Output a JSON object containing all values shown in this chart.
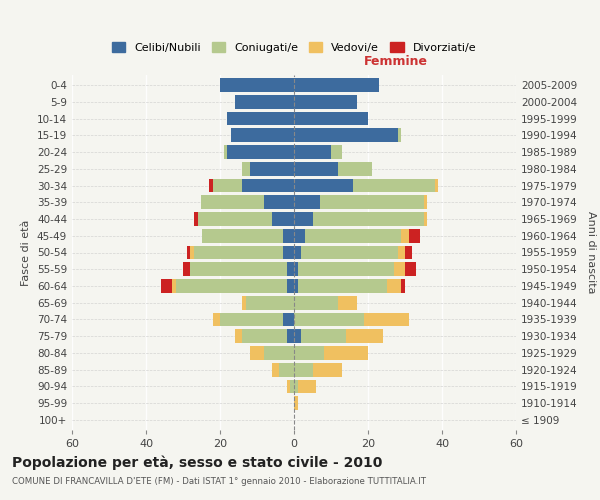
{
  "age_groups": [
    "100+",
    "95-99",
    "90-94",
    "85-89",
    "80-84",
    "75-79",
    "70-74",
    "65-69",
    "60-64",
    "55-59",
    "50-54",
    "45-49",
    "40-44",
    "35-39",
    "30-34",
    "25-29",
    "20-24",
    "15-19",
    "10-14",
    "5-9",
    "0-4"
  ],
  "birth_years": [
    "≤ 1909",
    "1910-1914",
    "1915-1919",
    "1920-1924",
    "1925-1929",
    "1930-1934",
    "1935-1939",
    "1940-1944",
    "1945-1949",
    "1950-1954",
    "1955-1959",
    "1960-1964",
    "1965-1969",
    "1970-1974",
    "1975-1979",
    "1980-1984",
    "1985-1989",
    "1990-1994",
    "1995-1999",
    "2000-2004",
    "2005-2009"
  ],
  "males": {
    "celibi": [
      0,
      0,
      0,
      0,
      0,
      2,
      3,
      0,
      2,
      2,
      3,
      3,
      6,
      8,
      14,
      12,
      18,
      17,
      18,
      16,
      20
    ],
    "coniugati": [
      0,
      0,
      1,
      4,
      8,
      12,
      17,
      13,
      30,
      26,
      24,
      22,
      20,
      17,
      8,
      2,
      1,
      0,
      0,
      0,
      0
    ],
    "vedovi": [
      0,
      0,
      1,
      2,
      4,
      2,
      2,
      1,
      1,
      0,
      1,
      0,
      0,
      0,
      0,
      0,
      0,
      0,
      0,
      0,
      0
    ],
    "divorziati": [
      0,
      0,
      0,
      0,
      0,
      0,
      0,
      0,
      3,
      2,
      1,
      0,
      1,
      0,
      1,
      0,
      0,
      0,
      0,
      0,
      0
    ]
  },
  "females": {
    "nubili": [
      0,
      0,
      0,
      0,
      0,
      2,
      0,
      0,
      1,
      1,
      2,
      3,
      5,
      7,
      16,
      12,
      10,
      28,
      20,
      17,
      23
    ],
    "coniugate": [
      0,
      0,
      1,
      5,
      8,
      12,
      19,
      12,
      24,
      26,
      26,
      26,
      30,
      28,
      22,
      9,
      3,
      1,
      0,
      0,
      0
    ],
    "vedove": [
      0,
      1,
      5,
      8,
      12,
      10,
      12,
      5,
      4,
      3,
      2,
      2,
      1,
      1,
      1,
      0,
      0,
      0,
      0,
      0,
      0
    ],
    "divorziate": [
      0,
      0,
      0,
      0,
      0,
      0,
      0,
      0,
      1,
      3,
      2,
      3,
      0,
      0,
      0,
      0,
      0,
      0,
      0,
      0,
      0
    ]
  },
  "colors": {
    "celibi": "#3d6b9e",
    "coniugati": "#b5c98e",
    "vedovi": "#f0c060",
    "divorziati": "#cc2222"
  },
  "xlim": 60,
  "title": "Popolazione per età, sesso e stato civile - 2010",
  "subtitle": "COMUNE DI FRANCAVILLA D'ETE (FM) - Dati ISTAT 1° gennaio 2010 - Elaborazione TUTTITALIA.IT",
  "ylabel_left": "Fasce di età",
  "ylabel_right": "Anni di nascita",
  "xlabel_right": "Femmine",
  "legend_labels": [
    "Celibi/Nubili",
    "Coniugati/e",
    "Vedovi/e",
    "Divorziati/e"
  ],
  "bg_color": "#f5f5f0"
}
